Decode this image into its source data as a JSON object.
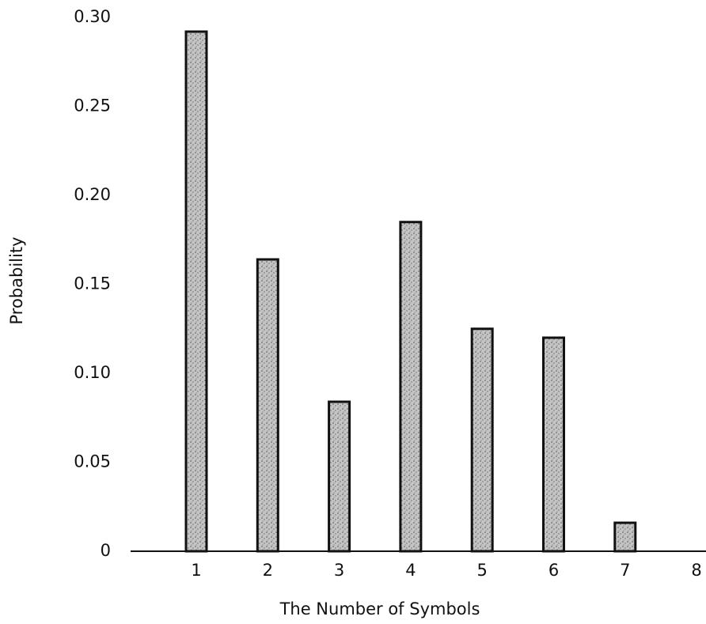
{
  "chart_data": {
    "type": "bar",
    "xlabel": "The Number of Symbols",
    "ylabel": "Probability",
    "categories": [
      "1",
      "2",
      "3",
      "4",
      "5",
      "6",
      "7",
      "8"
    ],
    "values": [
      0.292,
      0.164,
      0.084,
      0.185,
      0.125,
      0.12,
      0.016,
      0
    ],
    "color": "#c4c4c4",
    "ylim": [
      0,
      0.3
    ],
    "yticks": [
      0,
      0.05,
      {
        "value": 0.1,
        "label": "0.10"
      },
      0.15,
      {
        "value": 0.2,
        "label": "0.20"
      },
      0.25,
      {
        "value": 0.3,
        "label": "0.30"
      }
    ],
    "grid": false
  }
}
